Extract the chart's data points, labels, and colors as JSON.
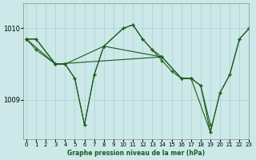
{
  "title": "Graphe pression niveau de la mer (hPa)",
  "bg_color": "#cce8e8",
  "grid_color": "#a8d0d0",
  "line_color": "#1a5c1a",
  "xlim": [
    -0.3,
    23
  ],
  "ylim": [
    1008.45,
    1010.35
  ],
  "yticks": [
    1009,
    1010
  ],
  "xticks": [
    0,
    1,
    2,
    3,
    4,
    5,
    6,
    7,
    8,
    9,
    10,
    11,
    12,
    13,
    14,
    15,
    16,
    17,
    18,
    19,
    20,
    21,
    22,
    23
  ],
  "series": [
    {
      "x": [
        0,
        1,
        3,
        4,
        5,
        6,
        7,
        8,
        10,
        11,
        12,
        13,
        14,
        15,
        16,
        17,
        19,
        20,
        21,
        22,
        23
      ],
      "y": [
        1009.85,
        1009.85,
        1009.5,
        1009.5,
        1009.3,
        1008.65,
        1009.35,
        1009.75,
        1010.0,
        1010.05,
        1009.85,
        1009.7,
        1009.55,
        1009.4,
        1009.3,
        1009.3,
        1008.55,
        1009.1,
        1009.35,
        1009.85,
        1010.0
      ]
    },
    {
      "x": [
        0,
        1,
        3,
        4,
        5,
        6,
        7,
        8,
        10,
        11,
        12,
        13,
        14
      ],
      "y": [
        1009.85,
        1009.85,
        1009.5,
        1009.5,
        1009.3,
        1008.65,
        1009.35,
        1009.75,
        1010.0,
        1010.05,
        1009.85,
        1009.7,
        1009.6
      ]
    },
    {
      "x": [
        0,
        3,
        4,
        8,
        14,
        16,
        17,
        18,
        19,
        20,
        21,
        22,
        23
      ],
      "y": [
        1009.85,
        1009.5,
        1009.5,
        1009.75,
        1009.6,
        1009.3,
        1009.3,
        1009.2,
        1008.55,
        1009.1,
        1009.35,
        1009.85,
        1010.0
      ]
    },
    {
      "x": [
        0,
        1,
        3,
        14,
        16,
        17,
        18,
        19
      ],
      "y": [
        1009.85,
        1009.7,
        1009.5,
        1009.6,
        1009.3,
        1009.3,
        1009.2,
        1008.65
      ]
    }
  ]
}
